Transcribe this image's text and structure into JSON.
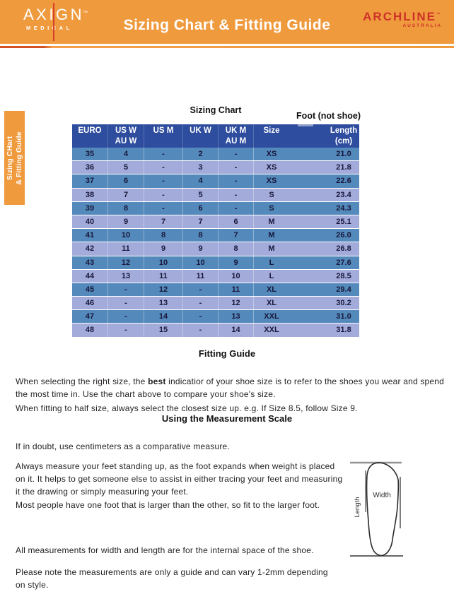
{
  "header": {
    "title": "Sizing Chart & Fitting Guide",
    "axign_name": "AXIGN",
    "axign_tm": "™",
    "axign_sub": "MEDICAL",
    "archline_name": "ARCHLINE",
    "archline_tm": "™",
    "archline_sub": "AUSTRALIA"
  },
  "side_tab": {
    "line1": "Sizing CHart",
    "line2": "& Fitting Guide"
  },
  "sizing_chart": {
    "title": "Sizing Chart",
    "note": "Foot (not shoe)",
    "columns": [
      {
        "l1": "EURO",
        "l2": ""
      },
      {
        "l1": "US W",
        "l2": "AU W"
      },
      {
        "l1": "US M",
        "l2": ""
      },
      {
        "l1": "UK W",
        "l2": ""
      },
      {
        "l1": "UK M",
        "l2": "AU M"
      },
      {
        "l1": "Size",
        "l2": ""
      },
      {
        "l1": "",
        "l2": ""
      },
      {
        "l1": "Length",
        "l2": "(cm)"
      }
    ],
    "rows": [
      [
        "35",
        "4",
        "-",
        "2",
        "-",
        "XS",
        "21.0"
      ],
      [
        "36",
        "5",
        "-",
        "3",
        "-",
        "XS",
        "21.8"
      ],
      [
        "37",
        "6",
        "-",
        "4",
        "-",
        "XS",
        "22.6"
      ],
      [
        "38",
        "7",
        "-",
        "5",
        "-",
        "S",
        "23.4"
      ],
      [
        "39",
        "8",
        "-",
        "6",
        "-",
        "S",
        "24.3"
      ],
      [
        "40",
        "9",
        "7",
        "7",
        "6",
        "M",
        "25.1"
      ],
      [
        "41",
        "10",
        "8",
        "8",
        "7",
        "M",
        "26.0"
      ],
      [
        "42",
        "11",
        "9",
        "9",
        "8",
        "M",
        "26.8"
      ],
      [
        "43",
        "12",
        "10",
        "10",
        "9",
        "L",
        "27.6"
      ],
      [
        "44",
        "13",
        "11",
        "11",
        "10",
        "L",
        "28.5"
      ],
      [
        "45",
        "-",
        "12",
        "-",
        "11",
        "XL",
        "29.4"
      ],
      [
        "46",
        "-",
        "13",
        "-",
        "12",
        "XL",
        "30.2"
      ],
      [
        "47",
        "-",
        "14",
        "-",
        "13",
        "XXL",
        "31.0"
      ],
      [
        "48",
        "-",
        "15",
        "-",
        "14",
        "XXL",
        "31.8"
      ]
    ]
  },
  "fitting_guide": {
    "title": "Fitting Guide",
    "p1_before": "When selecting the right size, the ",
    "p1_bold": "best",
    "p1_after": " indicatior of your shoe size is to refer to the shoes you wear and spend\nthe most time in. Use the chart above to compare your shoe's size.",
    "p2": "When fitting to half size, always select the closest size up. e.g. If Size 8.5, follow Size 9."
  },
  "measurement": {
    "title": "Using the Measurement Scale",
    "p1": "If in doubt, use centimeters as a comparative measure.",
    "p2": "Always measure your feet standing up, as the foot expands when weight is placed\non it. It helps to get someone else to assist in either tracing your feet and measuring\nit the drawing or simply measuring your feet.",
    "p3": "Most people have one foot that is larger than the other, so fit to the larger foot.",
    "p4": "All measurements for width and length are for the internal space of the shoe.",
    "p5": "Please note the measurements are only a guide and can vary 1-2mm depending\non style.",
    "diagram": {
      "width_label": "Width",
      "length_label": "Length"
    }
  },
  "colors": {
    "banner_orange": "#F09A3E",
    "archline_red": "#CE3128",
    "axign_line_red": "#D6402A",
    "table_header_blue": "#2E4D9E",
    "row_dark_blue": "#5489BB",
    "row_light_periwinkle": "#A3ABDB"
  }
}
